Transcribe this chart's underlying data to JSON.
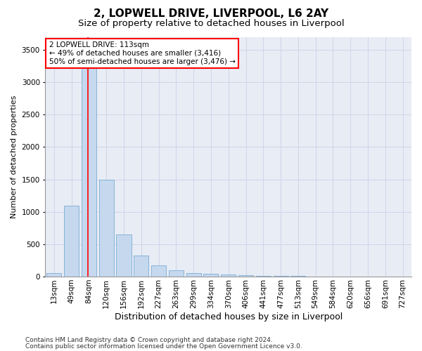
{
  "title1": "2, LOPWELL DRIVE, LIVERPOOL, L6 2AY",
  "title2": "Size of property relative to detached houses in Liverpool",
  "xlabel": "Distribution of detached houses by size in Liverpool",
  "ylabel": "Number of detached properties",
  "categories": [
    "13sqm",
    "49sqm",
    "84sqm",
    "120sqm",
    "156sqm",
    "192sqm",
    "227sqm",
    "263sqm",
    "299sqm",
    "334sqm",
    "370sqm",
    "406sqm",
    "441sqm",
    "477sqm",
    "513sqm",
    "549sqm",
    "584sqm",
    "620sqm",
    "656sqm",
    "691sqm",
    "727sqm"
  ],
  "values": [
    50,
    1090,
    3400,
    1500,
    650,
    330,
    175,
    95,
    55,
    40,
    30,
    22,
    15,
    10,
    7,
    5,
    4,
    3,
    2,
    2,
    1
  ],
  "bar_color": "#c5d8ee",
  "bar_edge_color": "#7aadd4",
  "grid_color": "#d0d4e8",
  "bg_color": "#e8ecf5",
  "annotation_line1": "2 LOPWELL DRIVE: 113sqm",
  "annotation_line2": "← 49% of detached houses are smaller (3,416)",
  "annotation_line3": "50% of semi-detached houses are larger (3,476) →",
  "vline_bar_index": 2,
  "footnote1": "Contains HM Land Registry data © Crown copyright and database right 2024.",
  "footnote2": "Contains public sector information licensed under the Open Government Licence v3.0.",
  "ylim": [
    0,
    3700
  ],
  "yticks": [
    0,
    500,
    1000,
    1500,
    2000,
    2500,
    3000,
    3500
  ],
  "title1_fontsize": 11,
  "title2_fontsize": 9.5,
  "xlabel_fontsize": 9,
  "ylabel_fontsize": 8,
  "tick_fontsize": 7.5,
  "annotation_fontsize": 7.5,
  "footnote_fontsize": 6.5
}
